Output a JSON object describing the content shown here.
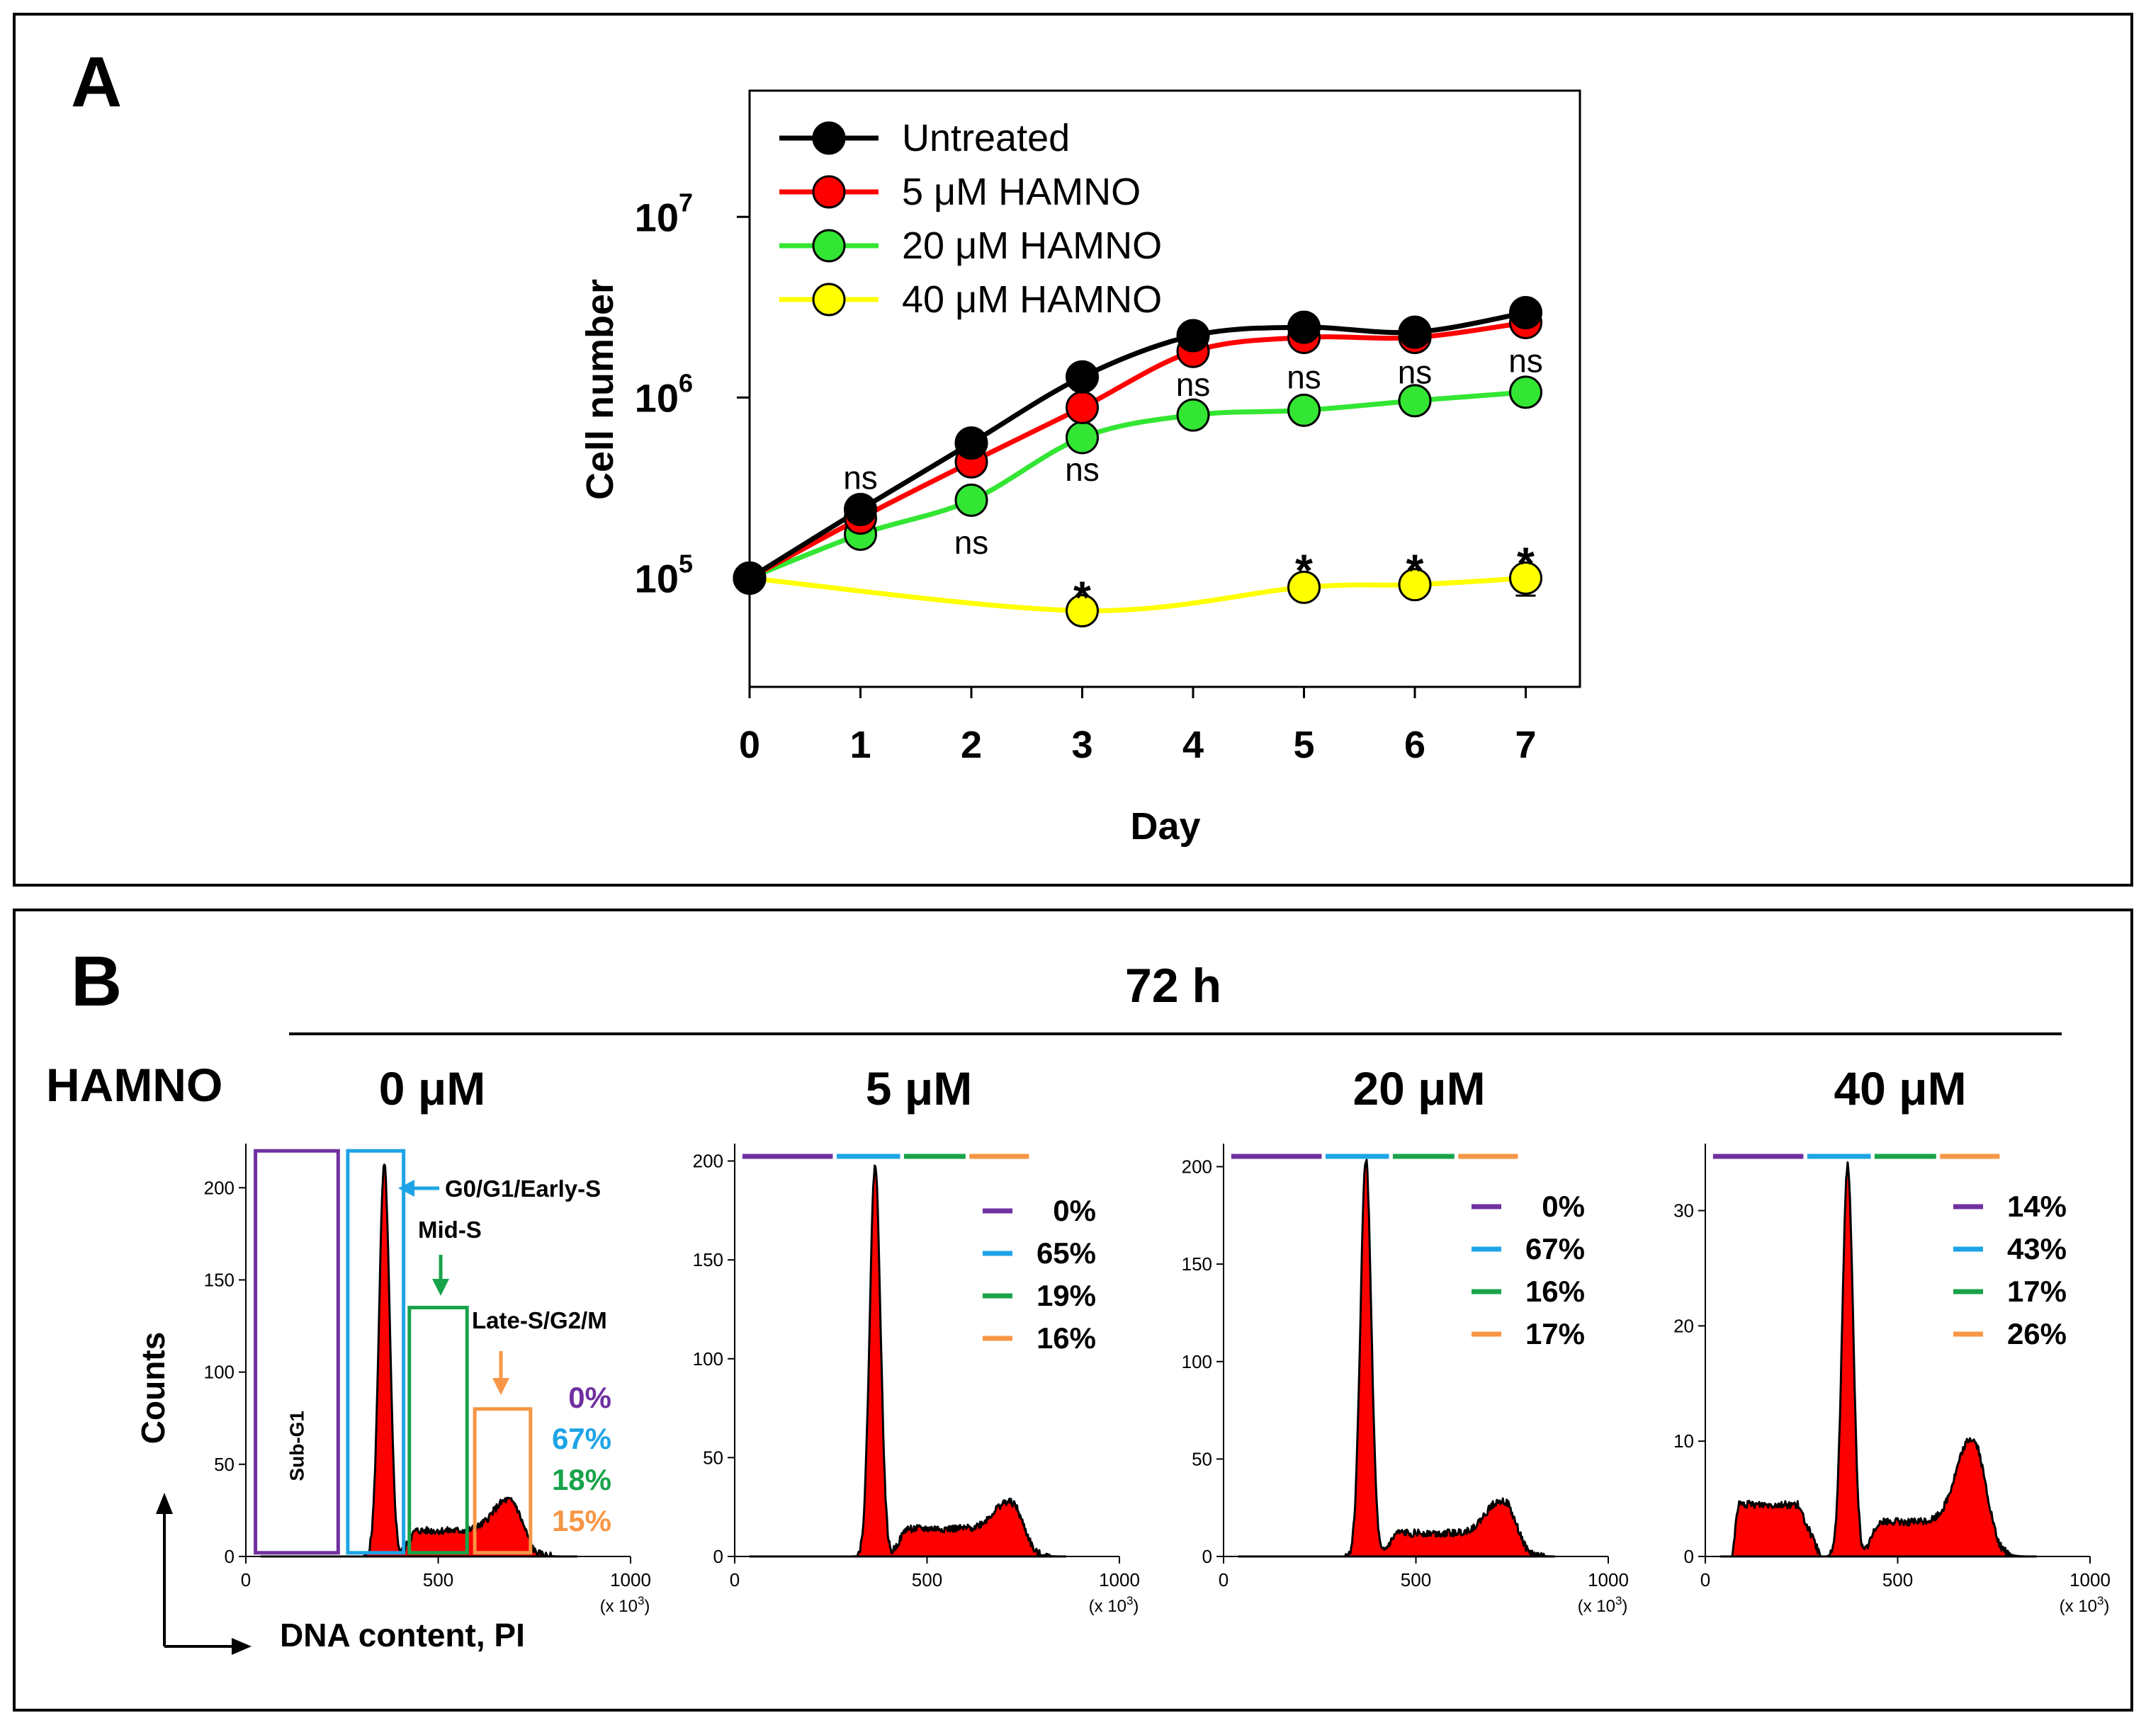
{
  "panel_a": {
    "letter": "A",
    "chart_data": {
      "type": "line",
      "title": "",
      "xlabel": "Day",
      "ylabel": "Cell number",
      "yscale": "log",
      "xlim": [
        0,
        7.5
      ],
      "ylim": [
        25000,
        50000000
      ],
      "x": [
        0,
        1,
        2,
        3,
        4,
        5,
        6,
        7
      ],
      "x_ticks": [
        "0",
        "1",
        "2",
        "3",
        "4",
        "5",
        "6",
        "7"
      ],
      "y_ticks": [
        {
          "value": 100000,
          "base": "10",
          "exp": "5"
        },
        {
          "value": 1000000,
          "base": "10",
          "exp": "6"
        },
        {
          "value": 10000000,
          "base": "10",
          "exp": "7"
        }
      ],
      "series": [
        {
          "name": "Untreated",
          "color": "#000000",
          "values": [
            100000,
            240000,
            560000,
            1300000,
            2200000,
            2450000,
            2300000,
            2950000
          ]
        },
        {
          "name": "5 μM HAMNO",
          "color": "#ff0000",
          "values": [
            100000,
            215000,
            440000,
            880000,
            1800000,
            2150000,
            2150000,
            2600000
          ]
        },
        {
          "name": "20 μM HAMNO",
          "color": "#33e633",
          "values": [
            100000,
            175000,
            270000,
            600000,
            800000,
            850000,
            960000,
            1070000
          ]
        },
        {
          "name": "40 μM HAMNO",
          "color": "#ffff00",
          "values": [
            100000,
            null,
            null,
            66000,
            null,
            89000,
            92000,
            100000
          ]
        }
      ],
      "annotations": [
        {
          "text": "ns",
          "x": 1,
          "y": 360000
        },
        {
          "text": "ns",
          "x": 2,
          "y": 158000
        },
        {
          "text": "ns",
          "x": 3,
          "y": 400000
        },
        {
          "text": "ns",
          "x": 4,
          "y": 1180000
        },
        {
          "text": "ns",
          "x": 5,
          "y": 1300000
        },
        {
          "text": "ns",
          "x": 6,
          "y": 1380000
        },
        {
          "text": "ns",
          "x": 7,
          "y": 1600000
        },
        {
          "text": "*",
          "x": 3,
          "y": 92000
        },
        {
          "text": "*",
          "x": 5,
          "y": 130000
        },
        {
          "text": "*",
          "x": 6,
          "y": 130000
        },
        {
          "text": "*",
          "x": 7,
          "y": 142000
        }
      ],
      "legend_position": "top-left"
    }
  },
  "panel_b": {
    "letter": "B",
    "timepoint": "72 h",
    "treatment_label": "HAMNO",
    "y_axis_label": "Counts",
    "x_axis_label": "DNA content, PI",
    "x_multiplier": "(x 10",
    "x_multiplier_exp": "3",
    "x_multiplier_close": ")",
    "phase_colors": {
      "sub_g1": "#7030a0",
      "g0g1": "#1ea4e6",
      "mid_s": "#18a34a",
      "late_s": "#f79646"
    },
    "gate_labels": {
      "sub_g1": "Sub-G1",
      "g0g1": "G0/G1/Early-S",
      "mid_s": "Mid-S",
      "late_s": "Late-S/G2/M"
    },
    "chart_data": [
      {
        "type": "area",
        "title": "0 μM",
        "x_ticks": [
          "0",
          "500",
          "1000"
        ],
        "y_ticks": [
          "0",
          "50",
          "100",
          "150",
          "200"
        ],
        "ylim": [
          0,
          222
        ],
        "peak_x": 360,
        "peak_y": 212,
        "g2_x": 680,
        "g2_y": 25,
        "s_level": 14,
        "subg1_level": 0,
        "percentages": [
          "0%",
          "67%",
          "18%",
          "15%"
        ]
      },
      {
        "type": "area",
        "title": "5 μM",
        "x_ticks": [
          "0",
          "500",
          "1000"
        ],
        "y_ticks": [
          "0",
          "50",
          "100",
          "150",
          "200"
        ],
        "ylim": [
          0,
          207
        ],
        "peak_x": 365,
        "peak_y": 198,
        "g2_x": 710,
        "g2_y": 22,
        "s_level": 14,
        "subg1_level": 0,
        "percentages": [
          "0%",
          "65%",
          "19%",
          "16%"
        ]
      },
      {
        "type": "area",
        "title": "20 μM",
        "x_ticks": [
          "0",
          "500",
          "1000"
        ],
        "y_ticks": [
          "0",
          "50",
          "100",
          "150",
          "200"
        ],
        "ylim": [
          0,
          210
        ],
        "peak_x": 370,
        "peak_y": 204,
        "g2_x": 720,
        "g2_y": 24,
        "s_level": 12,
        "subg1_level": 0,
        "percentages": [
          "0%",
          "67%",
          "16%",
          "17%"
        ]
      },
      {
        "type": "area",
        "title": "40 μM",
        "x_ticks": [
          "0",
          "500",
          "1000"
        ],
        "y_ticks": [
          "0",
          "10",
          "20",
          "30"
        ],
        "ylim": [
          0,
          35.5
        ],
        "peak_x": 370,
        "peak_y": 34,
        "g2_x": 690,
        "g2_y": 9,
        "s_level": 3,
        "subg1_level": 4.5,
        "percentages": [
          "14%",
          "43%",
          "17%",
          "26%"
        ]
      }
    ]
  }
}
